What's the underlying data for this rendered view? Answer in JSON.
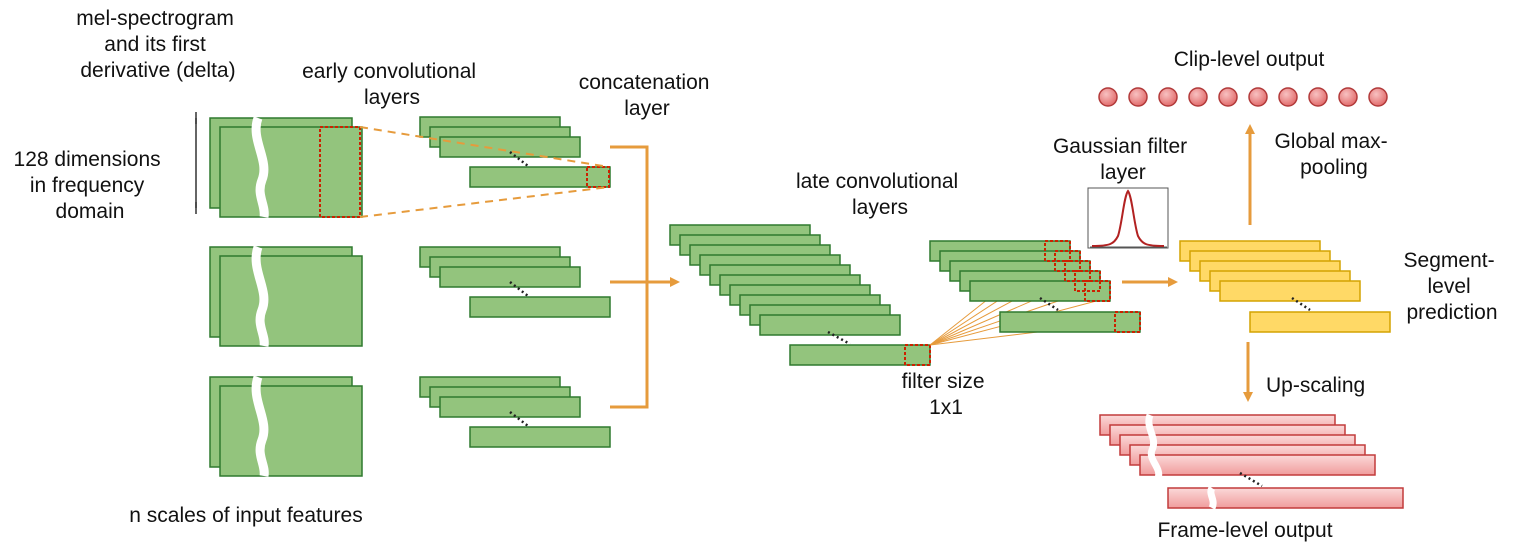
{
  "labels": {
    "mel_title_1": "mel-spectrogram",
    "mel_title_2": "and its first",
    "mel_title_3": "derivative (delta)",
    "dim_1": "128 dimensions",
    "dim_2": "in frequency",
    "dim_3": "domain",
    "early_1": "early convolutional",
    "early_2": "layers",
    "concat_1": "concatenation",
    "concat_2": "layer",
    "late_1": "late convolutional",
    "late_2": "layers",
    "gauss_1": "Gaussian filter",
    "gauss_2": "layer",
    "clip": "Clip-level output",
    "gmp_1": "Global max-",
    "gmp_2": "pooling",
    "seg_1": "Segment-",
    "seg_2": "level",
    "seg_3": "prediction",
    "filter_1": "filter size",
    "filter_2": "1x1",
    "upscale": "Up-scaling",
    "frame": "Frame-level output",
    "nscales": "n scales of input features"
  },
  "colors": {
    "feature_map": "#93c47d",
    "segment_map": "#ffd966",
    "frame_map": "#f4b6b6",
    "clip_node": "#e06666",
    "arrow": "#e69b3c",
    "highlight_box": "#cc2200"
  }
}
